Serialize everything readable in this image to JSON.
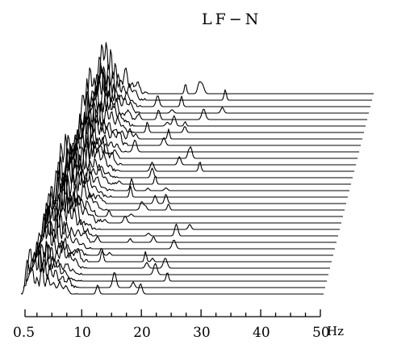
{
  "chart_data": {
    "type": "line",
    "title": "LF−N",
    "xlabel": "Hz",
    "ylabel": "",
    "x_ticks": [
      {
        "value": 0.5,
        "label": "0.5"
      },
      {
        "value": 10,
        "label": "10"
      },
      {
        "value": 20,
        "label": "20"
      },
      {
        "value": 30,
        "label": "30"
      },
      {
        "value": 40,
        "label": "40"
      },
      {
        "value": 50,
        "label": "50"
      }
    ],
    "x_minor_ticks": [
      2.5,
      5,
      7.5,
      12.5,
      15,
      17.5,
      22.5,
      25,
      27.5,
      32.5,
      35,
      37.5,
      42.5,
      45,
      47.5
    ],
    "xlim": [
      0.5,
      50
    ],
    "grid": false,
    "legend": "none",
    "series_count": 32
  }
}
